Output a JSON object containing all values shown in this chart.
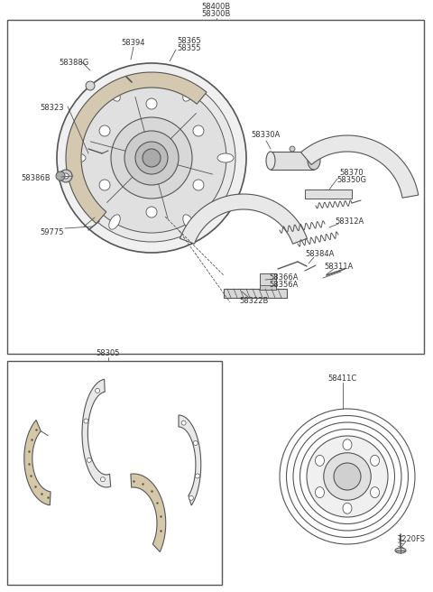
{
  "bg_color": "#ffffff",
  "line_color": "#555555",
  "text_color": "#333333",
  "fig_width": 4.8,
  "fig_height": 6.56,
  "dpi": 100,
  "font_size": 6.0,
  "labels": {
    "top1": "58400B",
    "top2": "58300B",
    "l_58394": "58394",
    "l_58388G": "58388G",
    "l_58365": "58365",
    "l_58355": "58355",
    "l_58323": "58323",
    "l_58386B": "58386B",
    "l_59775": "59775",
    "l_58330A": "58330A",
    "l_58370": "58370",
    "l_58350G": "58350G",
    "l_58312A": "58312A",
    "l_58384A": "58384A",
    "l_58311A": "58311A",
    "l_58366A": "58366A",
    "l_58356A": "58356A",
    "l_58322B": "58322B",
    "l_58305": "58305",
    "l_58411C": "58411C",
    "l_1220FS": "1220FS"
  }
}
